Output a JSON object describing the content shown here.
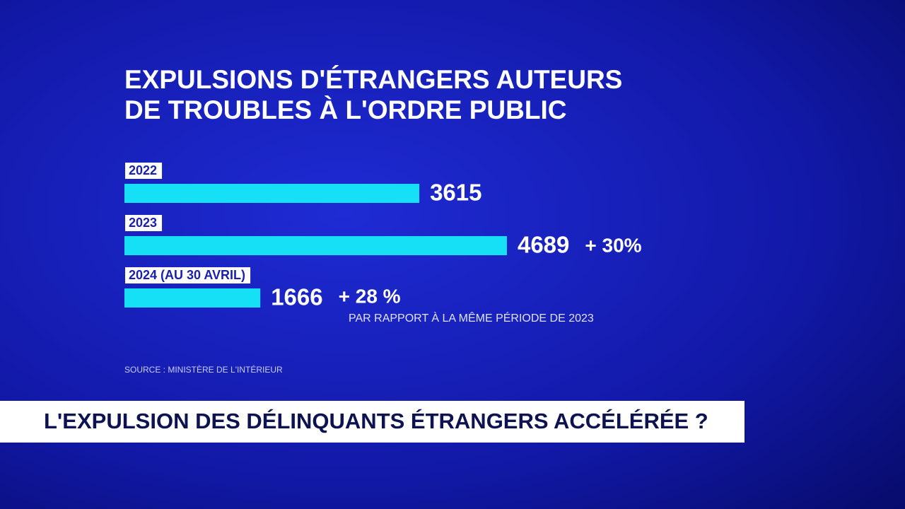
{
  "chart_data": {
    "type": "bar",
    "orientation": "horizontal",
    "title": [
      "EXPULSIONS D'ÉTRANGERS AUTEURS",
      "DE TROUBLES À L'ORDRE PUBLIC"
    ],
    "categories": [
      "2022",
      "2023",
      "2024 (AU 30 AVRIL)"
    ],
    "values": [
      3615,
      4689,
      1666
    ],
    "color": "#16e0f5",
    "annotations": [
      "+ 30%",
      "+ 28 %",
      "PAR RAPPORT À LA MÊME PÉRIODE DE 2023"
    ],
    "source": "SOURCE : MINISTÈRE DE L'INTÉRIEUR"
  },
  "banner": "L'EXPULSION DES DÉLINQUANTS ÉTRANGERS ACCÉLÉRÉE ?"
}
